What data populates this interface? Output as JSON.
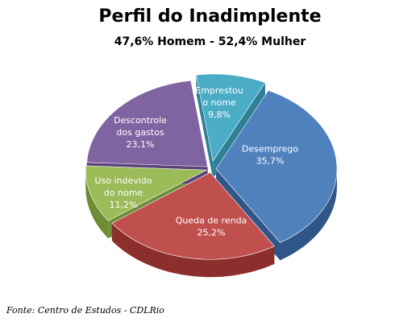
{
  "chart_data": {
    "type": "pie",
    "title": "Perfil do Inadimplente",
    "subtitle": "47,6% Homem - 52,4% Mulher",
    "slices": [
      {
        "label": "Emprestou o nome",
        "label_lines": [
          "Emprestou",
          "o nome"
        ],
        "value": 9.8,
        "display": "9,8%",
        "color": "#4bacc6",
        "side": "#2e7f95"
      },
      {
        "label": "Desemprego",
        "label_lines": [
          "Desemprego"
        ],
        "value": 35.7,
        "display": "35,7%",
        "color": "#4f81bd",
        "side": "#2f5687"
      },
      {
        "label": "Queda de renda",
        "label_lines": [
          "Queda de renda"
        ],
        "value": 25.2,
        "display": "25,2%",
        "color": "#c0504d",
        "side": "#8c2e2c"
      },
      {
        "label": "Uso indevido do nome",
        "label_lines": [
          "Uso indevido",
          "do nome"
        ],
        "value": 11.2,
        "display": "11,2%",
        "color": "#9bbb59",
        "side": "#6e8c34"
      },
      {
        "label": "Descontrole dos gastos",
        "label_lines": [
          "Descontrole",
          "dos gastos"
        ],
        "value": 23.1,
        "display": "23,1%",
        "color": "#8064a2",
        "side": "#5a4378"
      }
    ]
  },
  "source": "Fonte: Centro de Estudos - CDLRio"
}
